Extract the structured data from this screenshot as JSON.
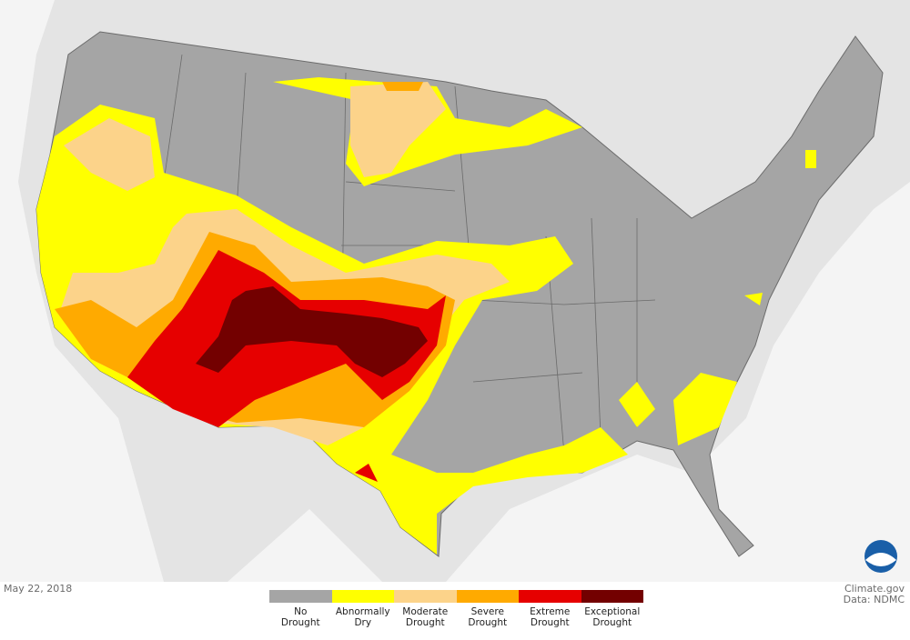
{
  "map": {
    "date": "May 22, 2018",
    "credit": "Climate.gov",
    "source": "Data: NDMC",
    "legend": [
      {
        "lines": [
          "No",
          "Drought"
        ],
        "color": "#a5a5a5"
      },
      {
        "lines": [
          "Abnormally",
          "Dry"
        ],
        "color": "#ffff00"
      },
      {
        "lines": [
          "Moderate",
          "Drought"
        ],
        "color": "#fcd38a"
      },
      {
        "lines": [
          "Severe",
          "Drought"
        ],
        "color": "#ffaa00"
      },
      {
        "lines": [
          "Extreme",
          "Drought"
        ],
        "color": "#e60000"
      },
      {
        "lines": [
          "Exceptional",
          "Drought"
        ],
        "color": "#730000"
      }
    ]
  }
}
